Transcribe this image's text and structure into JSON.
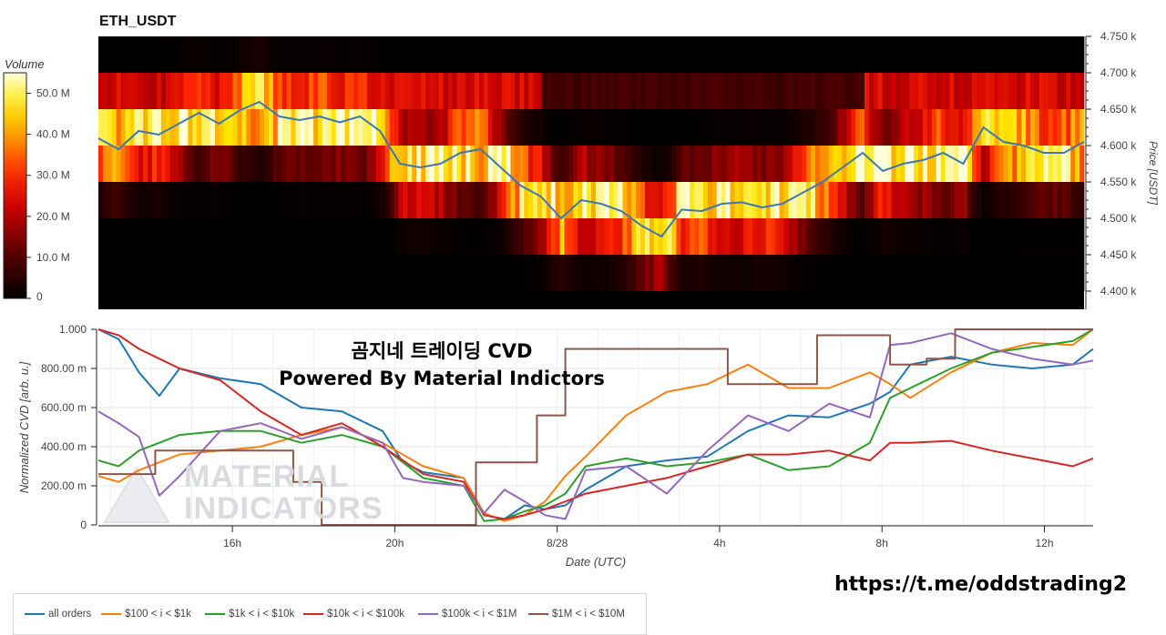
{
  "chart_title": "ETH_USDT",
  "overlay": {
    "line1": "곰지네 트레이딩 CVD",
    "line2": "Powered By Material Indictors"
  },
  "telegram_link": "https://t.me/oddstrading2",
  "watermark": {
    "line1": "MATERIAL",
    "line2": "INDICATORS"
  },
  "colors": {
    "all_orders": "#1f77b4",
    "s100_1k": "#ff7f0e",
    "s1k_10k": "#2ca02c",
    "s10k_100k": "#d62728",
    "s100k_1M": "#9467bd",
    "s1M_10M": "#8c564b"
  },
  "chart_data": [
    {
      "type": "heatmap",
      "title": "ETH_USDT",
      "colorbar_label": "Volume",
      "colorbar_ticks": [
        "0",
        "10.0 M",
        "20.0 M",
        "30.0 M",
        "40.0 M",
        "50.0 M"
      ],
      "colorbar_range": [
        0,
        55
      ],
      "ylabel": "Price [USDT]",
      "ylim": [
        4375,
        4750
      ],
      "y_ticks": [
        "4.400 k",
        "4.450 k",
        "4.500 k",
        "4.550 k",
        "4.600 k",
        "4.650 k",
        "4.700 k",
        "4.750 k"
      ],
      "price_bands": [
        4400,
        4450,
        4500,
        4550,
        4600,
        4650,
        4700,
        4750
      ],
      "price_line": {
        "x": [
          0,
          0.5,
          1,
          1.5,
          2,
          2.5,
          3,
          3.5,
          4,
          4.5,
          5,
          5.5,
          6,
          6.5,
          7,
          7.5,
          8,
          8.5,
          9,
          9.5,
          10,
          10.5,
          11,
          11.5,
          12,
          12.5,
          13,
          13.5,
          14,
          14.5,
          15,
          15.5,
          16,
          16.5,
          17,
          17.5,
          18,
          18.5,
          19,
          19.5,
          20,
          20.5,
          21,
          21.5,
          22,
          22.5,
          23,
          23.5,
          24,
          24.5
        ],
        "price": [
          4610,
          4595,
          4620,
          4615,
          4630,
          4645,
          4630,
          4648,
          4660,
          4640,
          4635,
          4640,
          4632,
          4640,
          4620,
          4575,
          4570,
          4575,
          4590,
          4595,
          4570,
          4545,
          4530,
          4500,
          4525,
          4520,
          4510,
          4490,
          4475,
          4512,
          4510,
          4520,
          4522,
          4515,
          4520,
          4535,
          4550,
          4570,
          4590,
          4565,
          4575,
          4580,
          4590,
          4575,
          4625,
          4605,
          4600,
          4590,
          4590,
          4605
        ]
      }
    },
    {
      "type": "line",
      "ylabel": "Normalized CVD [arb. u.]",
      "xlabel": "Date (UTC)",
      "ylim": [
        0,
        1
      ],
      "y_ticks": [
        "0",
        "200.00 m",
        "400.00 m",
        "600.00 m",
        "800.00 m",
        "1.000"
      ],
      "x_ticks": [
        "16h",
        "20h",
        "8/28",
        "4h",
        "8h",
        "12h"
      ],
      "x_tick_hours": [
        3.3,
        7.3,
        11.3,
        15.3,
        19.3,
        23.3
      ],
      "x_range_hours": [
        0,
        24.5
      ],
      "series": [
        {
          "name": "all orders",
          "color": "#1f77b4",
          "x": [
            0,
            0.5,
            1,
            1.5,
            2,
            3,
            4,
            5,
            6,
            7,
            7.5,
            8,
            9,
            9.5,
            10,
            10.5,
            11,
            11.5,
            12,
            13,
            14,
            15,
            16,
            17,
            18,
            19,
            19.5,
            20,
            21,
            22,
            23,
            24,
            24.5
          ],
          "y": [
            1.0,
            0.95,
            0.78,
            0.66,
            0.8,
            0.75,
            0.72,
            0.6,
            0.58,
            0.48,
            0.32,
            0.27,
            0.24,
            0.05,
            0.03,
            0.1,
            0.08,
            0.1,
            0.18,
            0.3,
            0.33,
            0.35,
            0.48,
            0.56,
            0.55,
            0.62,
            0.68,
            0.82,
            0.86,
            0.82,
            0.8,
            0.82,
            0.9
          ]
        },
        {
          "name": "$100 < i < $1k",
          "color": "#ff7f0e",
          "x": [
            0,
            0.5,
            1,
            2,
            3,
            4,
            5,
            6,
            7,
            8,
            9,
            9.5,
            10,
            10.5,
            11,
            11.5,
            12,
            13,
            14,
            15,
            16,
            17,
            18,
            19,
            19.5,
            20,
            21,
            22,
            23,
            24,
            24.5
          ],
          "y": [
            0.25,
            0.22,
            0.28,
            0.36,
            0.38,
            0.4,
            0.46,
            0.5,
            0.42,
            0.3,
            0.24,
            0.06,
            0.02,
            0.05,
            0.12,
            0.25,
            0.35,
            0.56,
            0.68,
            0.72,
            0.82,
            0.7,
            0.7,
            0.78,
            0.72,
            0.65,
            0.78,
            0.88,
            0.93,
            0.92,
            1.0
          ]
        },
        {
          "name": "$1k < i < $10k",
          "color": "#2ca02c",
          "x": [
            0,
            0.5,
            1,
            2,
            3,
            4,
            5,
            6,
            7,
            8,
            9,
            9.5,
            10,
            10.5,
            11,
            11.5,
            12,
            13,
            14,
            15,
            16,
            17,
            18,
            19,
            19.5,
            20,
            21,
            22,
            23,
            24,
            24.5
          ],
          "y": [
            0.33,
            0.3,
            0.38,
            0.46,
            0.48,
            0.48,
            0.42,
            0.46,
            0.4,
            0.24,
            0.2,
            0.02,
            0.03,
            0.07,
            0.1,
            0.16,
            0.3,
            0.34,
            0.3,
            0.32,
            0.36,
            0.28,
            0.3,
            0.42,
            0.65,
            0.7,
            0.8,
            0.88,
            0.91,
            0.94,
            1.0
          ]
        },
        {
          "name": "$10k < i < $100k",
          "color": "#d62728",
          "x": [
            0,
            0.5,
            1,
            1.5,
            2,
            3,
            4,
            5,
            6,
            7,
            8,
            9,
            9.5,
            10,
            10.5,
            11,
            12,
            13,
            14,
            15,
            16,
            17,
            18,
            19,
            19.5,
            20,
            21,
            22,
            23,
            24,
            24.5
          ],
          "y": [
            1.0,
            0.97,
            0.9,
            0.85,
            0.8,
            0.74,
            0.58,
            0.46,
            0.52,
            0.4,
            0.26,
            0.22,
            0.05,
            0.03,
            0.05,
            0.08,
            0.16,
            0.2,
            0.24,
            0.3,
            0.36,
            0.36,
            0.38,
            0.33,
            0.42,
            0.42,
            0.43,
            0.38,
            0.34,
            0.3,
            0.34
          ]
        },
        {
          "name": "$100k < i < $1M",
          "color": "#9467bd",
          "x": [
            0,
            0.5,
            1,
            1.5,
            2,
            3,
            4,
            5,
            6,
            7,
            7.5,
            8,
            9,
            9.5,
            10,
            10.5,
            11,
            11.5,
            12,
            13,
            14,
            15,
            16,
            17,
            18,
            19,
            19.5,
            20,
            21,
            22,
            23,
            24,
            24.5
          ],
          "y": [
            0.58,
            0.52,
            0.45,
            0.15,
            0.25,
            0.48,
            0.52,
            0.44,
            0.5,
            0.42,
            0.24,
            0.22,
            0.2,
            0.06,
            0.18,
            0.12,
            0.05,
            0.03,
            0.28,
            0.3,
            0.16,
            0.38,
            0.56,
            0.48,
            0.62,
            0.55,
            0.92,
            0.93,
            0.98,
            0.9,
            0.85,
            0.82,
            0.84
          ]
        },
        {
          "name": "$1M < i < $10M",
          "color": "#8c564b",
          "x": [
            0,
            1.4,
            1.4,
            4.8,
            4.8,
            5.5,
            5.5,
            9.3,
            9.3,
            10.8,
            10.8,
            11.5,
            11.5,
            12.5,
            12.5,
            15.5,
            15.5,
            17.7,
            17.7,
            19.5,
            19.5,
            20.4,
            20.4,
            21.1,
            21.1,
            24.5
          ],
          "y": [
            0.26,
            0.26,
            0.38,
            0.38,
            0.22,
            0.22,
            0.0,
            0.0,
            0.32,
            0.32,
            0.56,
            0.56,
            0.9,
            0.9,
            0.9,
            0.9,
            0.72,
            0.72,
            0.97,
            0.97,
            0.82,
            0.82,
            0.85,
            0.85,
            1.0,
            1.0
          ]
        }
      ]
    }
  ]
}
